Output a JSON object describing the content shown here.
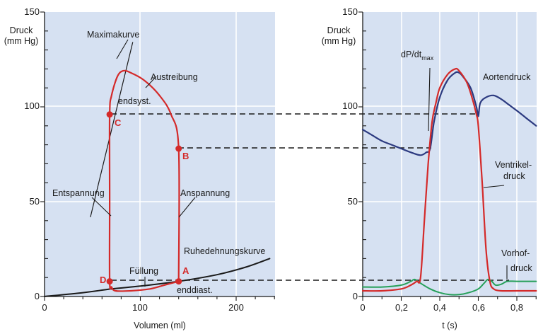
{
  "left_panel": {
    "ylabel_line1": "Druck",
    "ylabel_line2": "(mm Hg)",
    "xlabel": "Volumen (ml)",
    "y_ticks": [
      "0",
      "50",
      "100",
      "150"
    ],
    "x_ticks": [
      "0",
      "100",
      "200"
    ],
    "annotations": {
      "maximakurve": "Maximakurve",
      "austreibung": "Austreibung",
      "endsyst": "endsyst.",
      "entspannung": "Entspannung",
      "anspannung": "Anspannung",
      "ruhedehnungskurve": "Ruhedehnungskurve",
      "fuellung": "Füllung",
      "enddiast": "enddiast."
    },
    "points": {
      "A": "A",
      "B": "B",
      "C": "C",
      "D": "D"
    }
  },
  "right_panel": {
    "ylabel_line1": "Druck",
    "ylabel_line2": "(mm Hg)",
    "xlabel": "t (s)",
    "y_ticks": [
      "0",
      "50",
      "100",
      "150"
    ],
    "x_ticks": [
      "0",
      "0,2",
      "0,4",
      "0,6",
      "0,8"
    ],
    "annotations": {
      "dpdt": "dP/dt",
      "dpdt_sub": "max",
      "aortendruck": "Aortendruck",
      "ventrikel_1": "Ventrikel-",
      "ventrikel_2": "druck",
      "vorhof_1": "Vorhof-",
      "vorhof_2": "druck"
    }
  },
  "chart_data": [
    {
      "type": "line",
      "title": "",
      "xlabel": "Volumen (ml)",
      "ylabel": "Druck (mm Hg)",
      "xlim": [
        0,
        240
      ],
      "ylim": [
        0,
        150
      ],
      "points": [
        {
          "name": "A",
          "x": 140,
          "y": 8
        },
        {
          "name": "B",
          "x": 140,
          "y": 78
        },
        {
          "name": "C",
          "x": 68,
          "y": 96
        },
        {
          "name": "D",
          "x": 68,
          "y": 8
        }
      ],
      "series": [
        {
          "name": "Ruhedehnungskurve",
          "color": "#1a1a1a",
          "x": [
            0,
            40,
            70,
            100,
            140,
            180,
            210,
            235
          ],
          "y": [
            0,
            2,
            4,
            5.5,
            8,
            11.5,
            15.5,
            20
          ]
        },
        {
          "name": "Maximakurve",
          "color": "#1a1a1a",
          "x": [
            48,
            92
          ],
          "y": [
            42,
            134
          ]
        },
        {
          "name": "Druck-Volumen-Schleife",
          "color": "#d42a2a",
          "x": [
            140,
            140,
            132,
            120,
            104,
            90,
            82,
            76,
            70,
            68,
            68,
            68,
            70,
            74,
            90,
            110,
            125,
            140
          ],
          "y": [
            8,
            78,
            96,
            106,
            114,
            118,
            119,
            116,
            106,
            96,
            50,
            8,
            5,
            3,
            3,
            4,
            6,
            8
          ]
        }
      ]
    },
    {
      "type": "line",
      "title": "",
      "xlabel": "t (s)",
      "ylabel": "Druck (mm Hg)",
      "xlim": [
        0,
        0.9
      ],
      "ylim": [
        0,
        150
      ],
      "series": [
        {
          "name": "Aortendruck",
          "color": "#2c3a80",
          "x": [
            0,
            0.05,
            0.1,
            0.15,
            0.2,
            0.25,
            0.3,
            0.33,
            0.35,
            0.37,
            0.4,
            0.44,
            0.48,
            0.5,
            0.52,
            0.56,
            0.59,
            0.6,
            0.61,
            0.64,
            0.68,
            0.72,
            0.76,
            0.8,
            0.85,
            0.9
          ],
          "y": [
            88,
            85,
            82,
            80,
            78,
            76,
            74.5,
            76,
            78,
            92,
            105,
            114,
            118,
            118,
            116,
            110,
            100,
            95,
            102,
            105,
            106,
            104,
            101,
            98,
            94,
            90
          ]
        },
        {
          "name": "Ventrikeldruck",
          "color": "#d42a2a",
          "x": [
            0,
            0.1,
            0.2,
            0.25,
            0.28,
            0.3,
            0.32,
            0.34,
            0.36,
            0.38,
            0.4,
            0.44,
            0.48,
            0.5,
            0.54,
            0.57,
            0.59,
            0.6,
            0.62,
            0.64,
            0.66,
            0.68,
            0.72,
            0.8,
            0.9
          ],
          "y": [
            3,
            3,
            4,
            6,
            8,
            10,
            40,
            70,
            92,
            102,
            110,
            117,
            120,
            119,
            113,
            104,
            96,
            90,
            60,
            25,
            8,
            4,
            3,
            3,
            3
          ]
        },
        {
          "name": "Vorhofdruck",
          "color": "#27a05a",
          "x": [
            0,
            0.1,
            0.2,
            0.25,
            0.27,
            0.3,
            0.35,
            0.4,
            0.45,
            0.5,
            0.55,
            0.6,
            0.63,
            0.65,
            0.67,
            0.69,
            0.72,
            0.75,
            0.8,
            0.9
          ],
          "y": [
            5,
            5,
            6,
            8,
            9,
            7,
            4,
            2,
            1,
            1,
            2,
            4,
            7,
            9,
            8,
            6,
            6.5,
            8,
            8,
            8
          ]
        }
      ]
    }
  ]
}
